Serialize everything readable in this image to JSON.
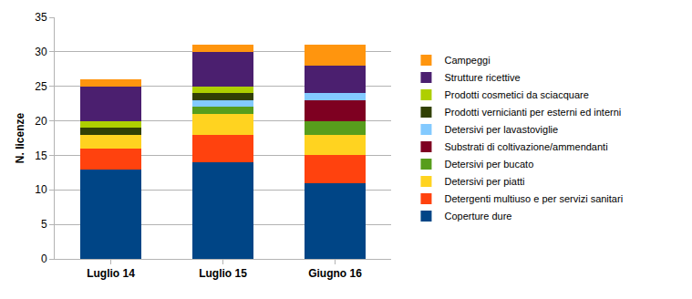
{
  "chart_data": {
    "type": "bar",
    "stacked": true,
    "y_label": "N. licenze",
    "categories": [
      "Luglio 14",
      "Luglio 15",
      "Giugno 16"
    ],
    "series": [
      {
        "name": "Coperture dure",
        "color": "#004586",
        "values": [
          13,
          14,
          11
        ]
      },
      {
        "name": "Detergenti multiuso e per servizi sanitari",
        "color": "#ff420e",
        "values": [
          3,
          4,
          4
        ]
      },
      {
        "name": "Detersivi per piatti",
        "color": "#ffd320",
        "values": [
          2,
          3,
          3
        ]
      },
      {
        "name": "Detersivi per bucato",
        "color": "#579d1c",
        "values": [
          0,
          1,
          2
        ]
      },
      {
        "name": "Substrati di coltivazione/ammendanti",
        "color": "#7e0021",
        "values": [
          0,
          0,
          3
        ]
      },
      {
        "name": "Detersivi per lavastoviglie",
        "color": "#83caff",
        "values": [
          0,
          1,
          1
        ]
      },
      {
        "name": "Prodotti vernicianti per esterni ed interni",
        "color": "#314004",
        "values": [
          1,
          1,
          0
        ]
      },
      {
        "name": "Prodotti cosmetici da sciacquare",
        "color": "#aecf00",
        "values": [
          1,
          1,
          0
        ]
      },
      {
        "name": "Strutture ricettive",
        "color": "#4b1f6f",
        "values": [
          5,
          5,
          4
        ]
      },
      {
        "name": "Campeggi",
        "color": "#ff950e",
        "values": [
          1,
          1,
          3
        ]
      }
    ],
    "ylim": [
      0,
      35
    ],
    "yticks": [
      0,
      5,
      10,
      15,
      20,
      25,
      30,
      35
    ],
    "grid": true,
    "legend": "right"
  }
}
